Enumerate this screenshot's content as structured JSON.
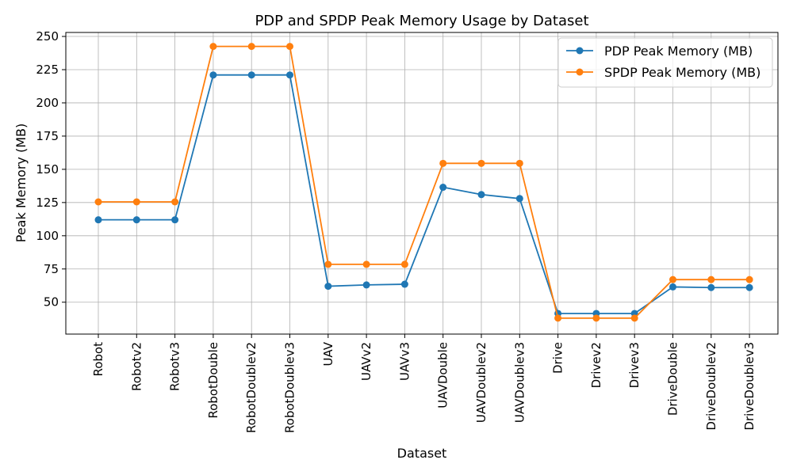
{
  "chart_data": {
    "type": "line",
    "title": "PDP and SPDP Peak Memory Usage by Dataset",
    "xlabel": "Dataset",
    "ylabel": "Peak Memory (MB)",
    "ylim": [
      26,
      253
    ],
    "yticks": [
      50,
      75,
      100,
      125,
      150,
      175,
      200,
      225,
      250
    ],
    "grid": true,
    "legend_position": "top-right",
    "categories": [
      "Robot",
      "Robotv2",
      "Robotv3",
      "RobotDouble",
      "RobotDoublev2",
      "RobotDoublev3",
      "UAV",
      "UAVv2",
      "UAVv3",
      "UAVDouble",
      "UAVDoublev2",
      "UAVDoublev3",
      "Drive",
      "Drivev2",
      "Drivev3",
      "DriveDouble",
      "DriveDoublev2",
      "DriveDoublev3"
    ],
    "series": [
      {
        "name": "PDP Peak Memory (MB)",
        "color": "#1f77b4",
        "values": [
          112,
          112,
          112,
          221,
          221,
          221,
          62,
          63,
          63.5,
          136.5,
          131,
          128,
          41.5,
          41.5,
          41.5,
          61.5,
          61,
          61
        ]
      },
      {
        "name": "SPDP Peak Memory (MB)",
        "color": "#ff7f0e",
        "values": [
          125.5,
          125.5,
          125.5,
          242.5,
          242.5,
          242.5,
          78.5,
          78.5,
          78.5,
          154.5,
          154.5,
          154.5,
          38,
          38,
          38,
          67,
          67,
          67
        ]
      }
    ]
  }
}
